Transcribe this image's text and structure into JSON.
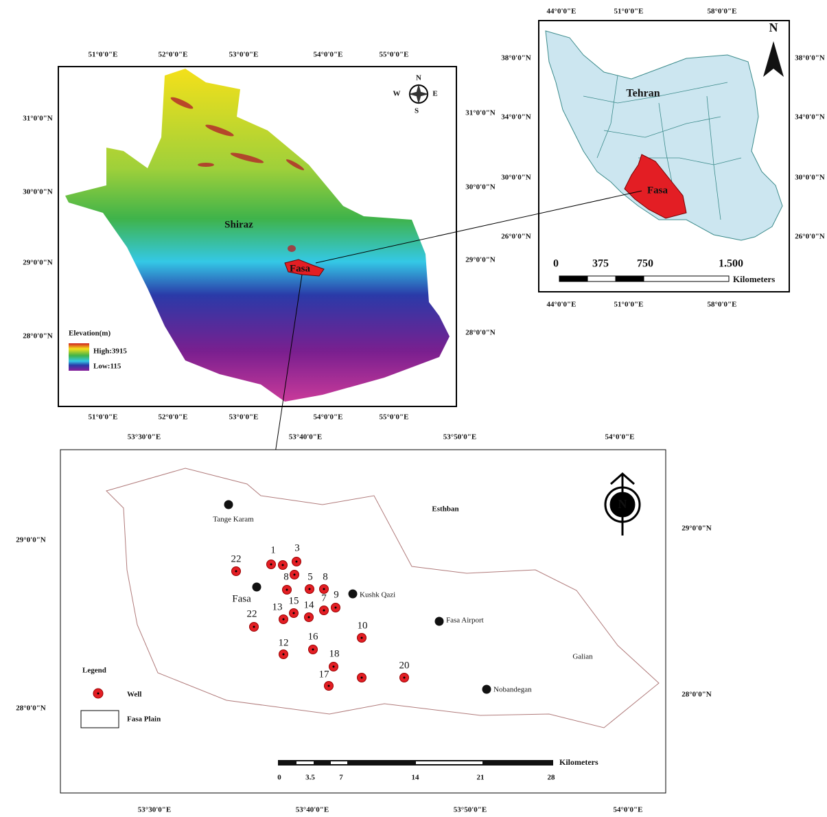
{
  "fars_map": {
    "lon_labels": [
      "51°0'0\"E",
      "52°0'0\"E",
      "53°0'0\"E",
      "54°0'0\"E",
      "55°0'0\"E"
    ],
    "lat_labels": [
      "31°0'0\"N",
      "30°0'0\"N",
      "29°0'0\"N",
      "28°0'0\"N"
    ],
    "places": {
      "shiraz": "Shiraz",
      "fasa": "Fasa"
    },
    "compass": {
      "n": "N",
      "s": "S",
      "w": "W",
      "e": "E"
    },
    "legend": {
      "title": "Elevation(m)",
      "high": "High:3915",
      "low": "Low:115"
    }
  },
  "iran_map": {
    "lon_labels": [
      "44°0'0\"E",
      "51°0'0\"E",
      "58°0'0\"E"
    ],
    "lat_labels": [
      "38°0'0\"N",
      "34°0'0\"N",
      "30°0'0\"N",
      "26°0'0\"N"
    ],
    "places": {
      "tehran": "Tehran",
      "fasa": "Fasa"
    },
    "north": "N",
    "scale": {
      "labels": [
        "0",
        "375",
        "750",
        "1.500"
      ],
      "unit": "Kilometers"
    }
  },
  "plain_map": {
    "lon_labels": [
      "53°30'0\"E",
      "53°40'0\"E",
      "53°50'0\"E",
      "54°0'0\"E"
    ],
    "lat_labels": [
      "29°0'0\"N",
      "28°0'0\"N"
    ],
    "towns": [
      "Tange Karam",
      "Fasa",
      "Kushk Qazi",
      "Fasa Airport",
      "Nobandegan"
    ],
    "regions": [
      "Esthban",
      "Galian"
    ],
    "wells": [
      "22",
      "1",
      "3",
      "8",
      "5",
      "8",
      "9",
      "7",
      "13",
      "15",
      "14",
      "22",
      "12",
      "16",
      "18",
      "17",
      "10",
      "20"
    ],
    "legend": {
      "title": "Legend",
      "well": "Well",
      "plain": "Fasa Plain"
    },
    "north": "N",
    "scale": {
      "labels": [
        "0",
        "3.5",
        "7",
        "14",
        "21",
        "28"
      ],
      "unit": "Kilometers"
    }
  }
}
